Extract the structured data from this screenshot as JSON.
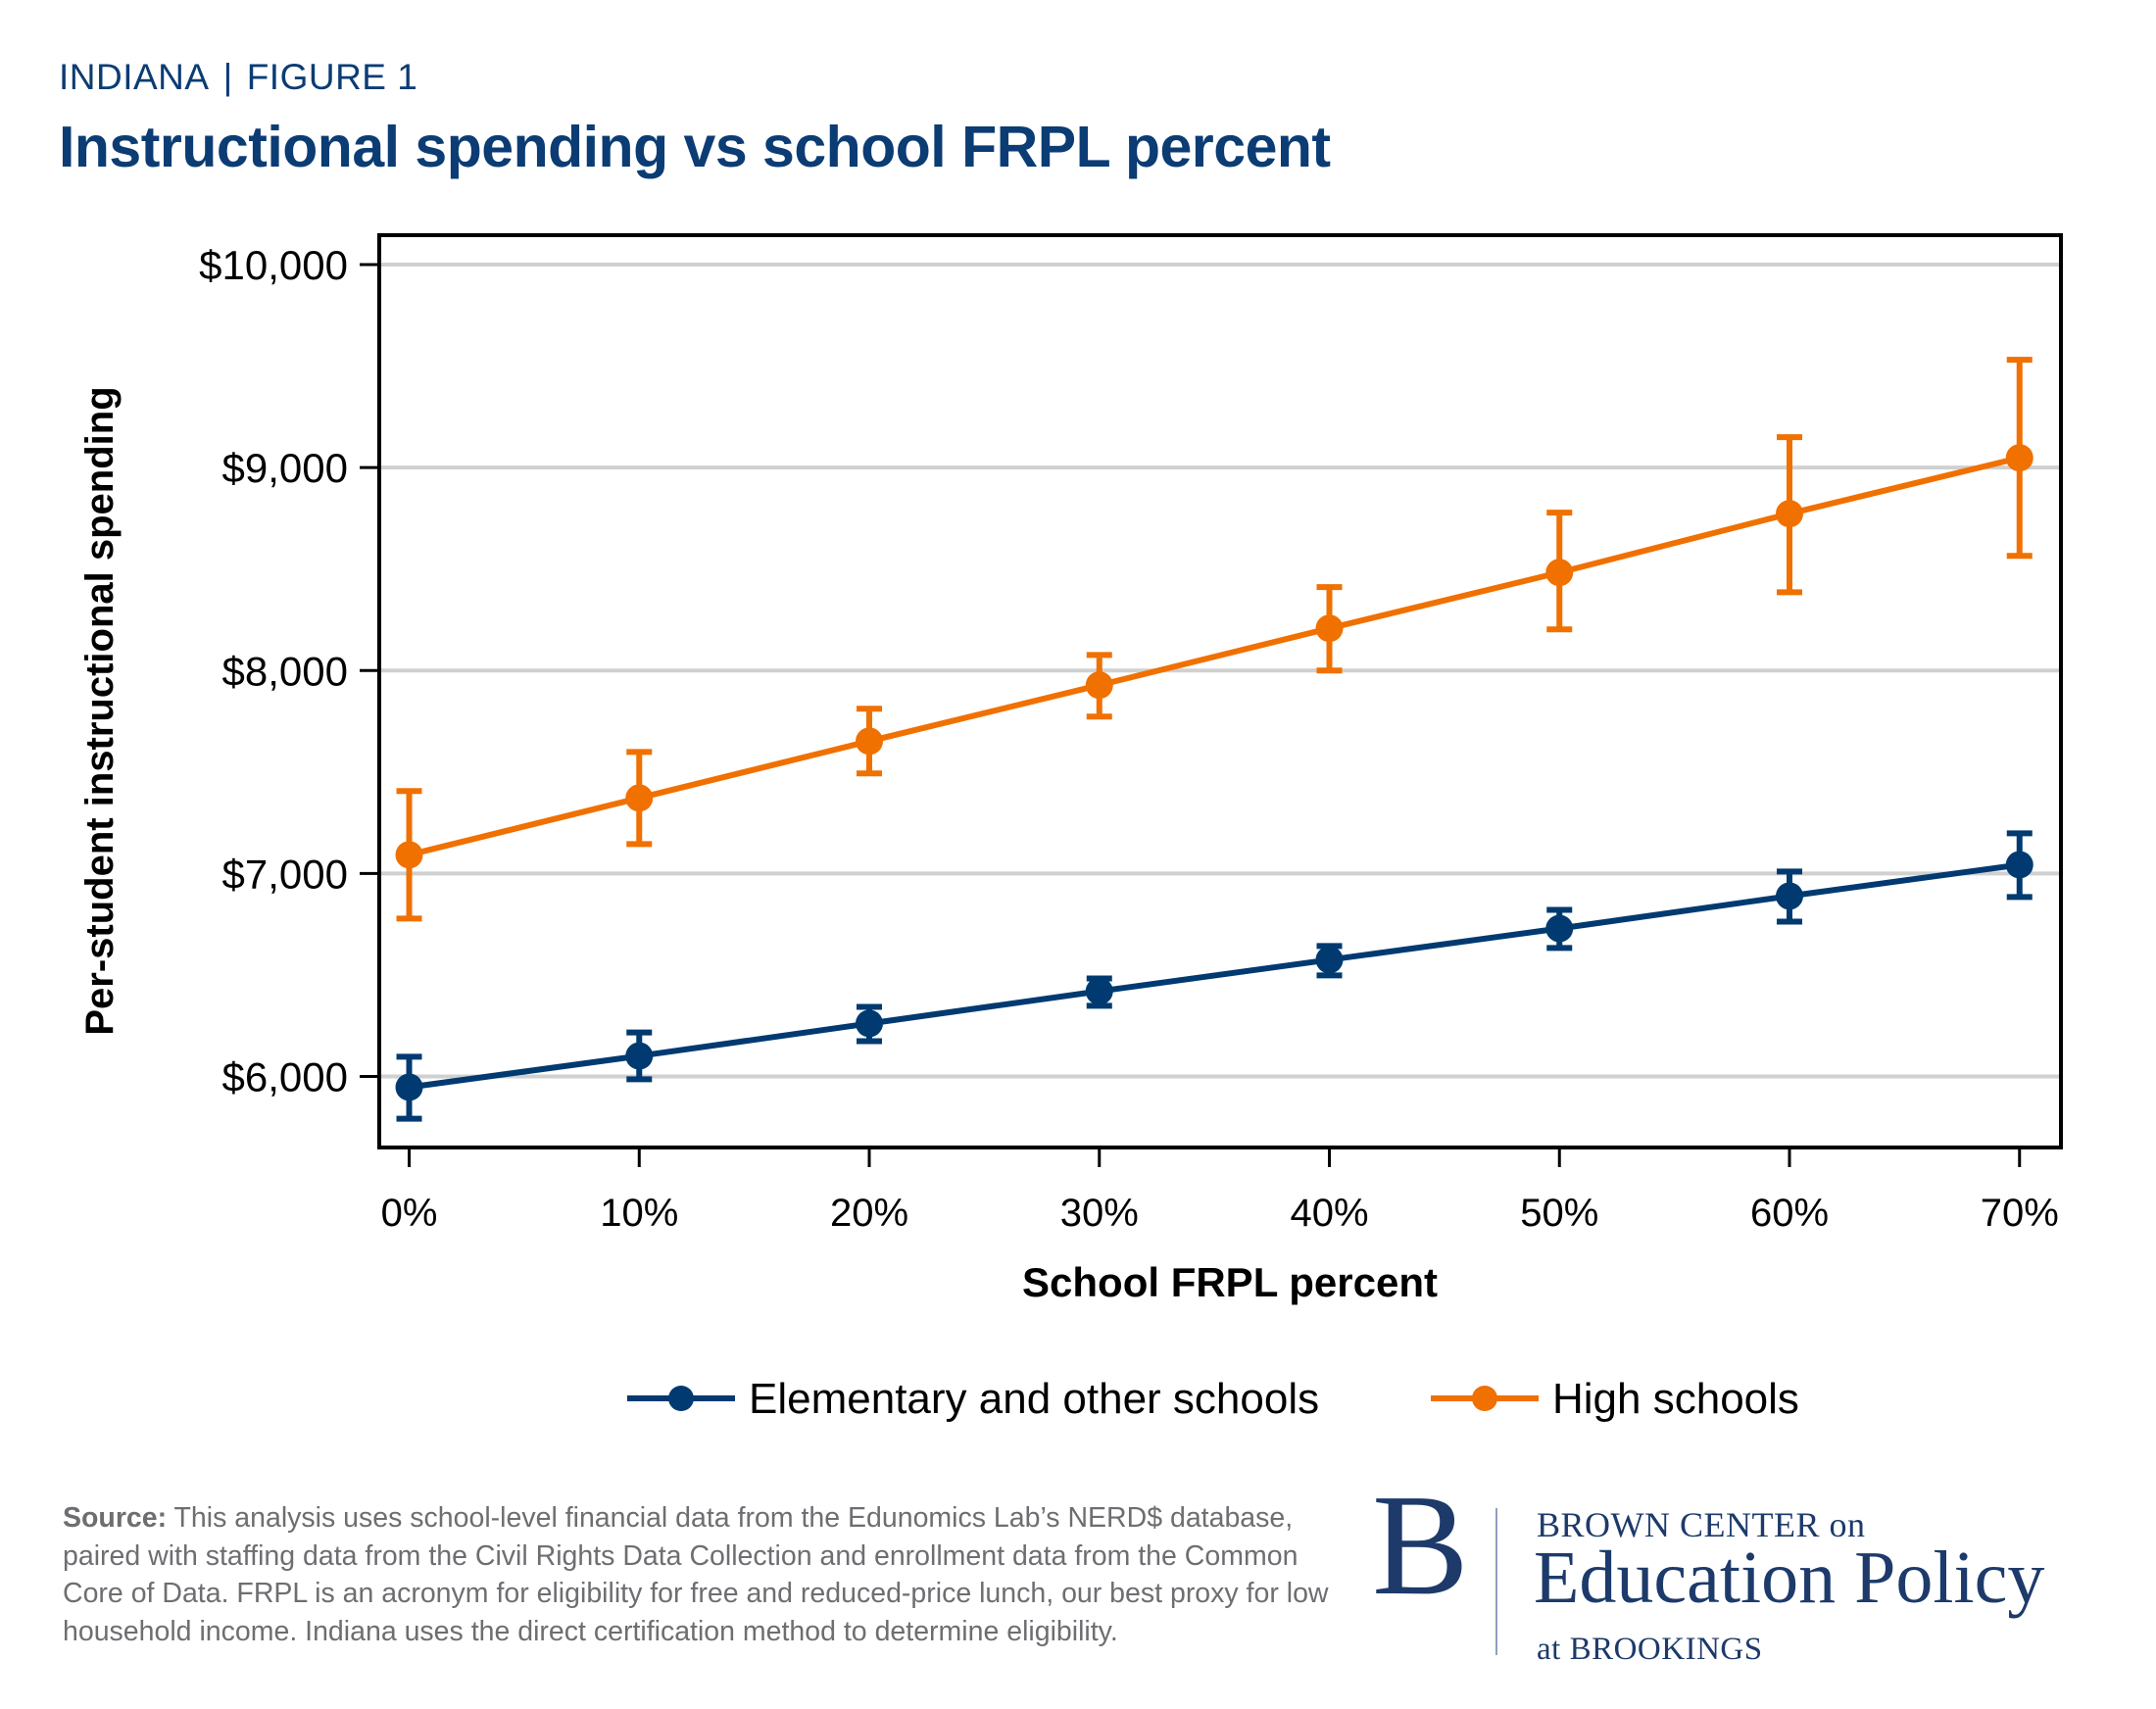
{
  "header": {
    "state": "INDIANA",
    "separator": "|",
    "figure": "FIGURE 1",
    "title": "Instructional spending vs school FRPL percent"
  },
  "colors": {
    "title": "#0b3c74",
    "elementary": "#003a70",
    "high": "#f07000",
    "gridline": "#d0d0d0",
    "axis": "#000000",
    "footer_text": "#6d6e71",
    "logo": "#1d3a6b"
  },
  "chart_data": {
    "type": "line",
    "title": "Instructional spending vs school FRPL percent",
    "xlabel": "School FRPL percent",
    "ylabel": "Per-student instructional spending",
    "x": [
      0,
      10,
      20,
      30,
      40,
      50,
      60,
      70
    ],
    "x_tick_labels": [
      "0%",
      "10%",
      "20%",
      "30%",
      "40%",
      "50%",
      "60%",
      "70%"
    ],
    "y_ticks": [
      6000,
      7000,
      8000,
      9000,
      10000
    ],
    "y_tick_labels": [
      "$6,000",
      "$7,000",
      "$8,000",
      "$9,000",
      "$10,000"
    ],
    "xlim": [
      -1.3,
      71.8
    ],
    "ylim": [
      5650,
      10145
    ],
    "grid": "horizontal",
    "error_bars": true,
    "legend_position": "bottom",
    "series": [
      {
        "name": "Elementary and other schools",
        "color": "#003a70",
        "values": [
          5947,
          6101,
          6261,
          6420,
          6575,
          6729,
          6889,
          7043
        ],
        "ci_low": [
          5792,
          5986,
          6174,
          6348,
          6498,
          6633,
          6763,
          6884
        ],
        "ci_high": [
          6097,
          6217,
          6343,
          6483,
          6643,
          6821,
          7010,
          7198
        ]
      },
      {
        "name": "High schools",
        "color": "#f07000",
        "values": [
          7092,
          7372,
          7652,
          7928,
          8208,
          8483,
          8773,
          9048
        ],
        "ci_low": [
          6778,
          7145,
          7493,
          7773,
          8000,
          8203,
          8386,
          8565
        ],
        "ci_high": [
          7406,
          7599,
          7812,
          8077,
          8411,
          8778,
          9150,
          9531
        ]
      }
    ]
  },
  "footer": {
    "source_label": "Source:",
    "source_text": " This analysis uses school-level financial data from the Edunomics Lab’s NERD$ database, paired with staffing data from the Civil Rights Data Collection and enrollment data from the Common Core of Data. FRPL is an acronym for eligibility for free and reduced-price lunch, our best proxy for low household income. Indiana uses the direct certification method to determine eligibility."
  },
  "logo": {
    "letter": "B",
    "line1": "BROWN CENTER on",
    "line2": "Education Policy",
    "line3": "at BROOKINGS"
  }
}
